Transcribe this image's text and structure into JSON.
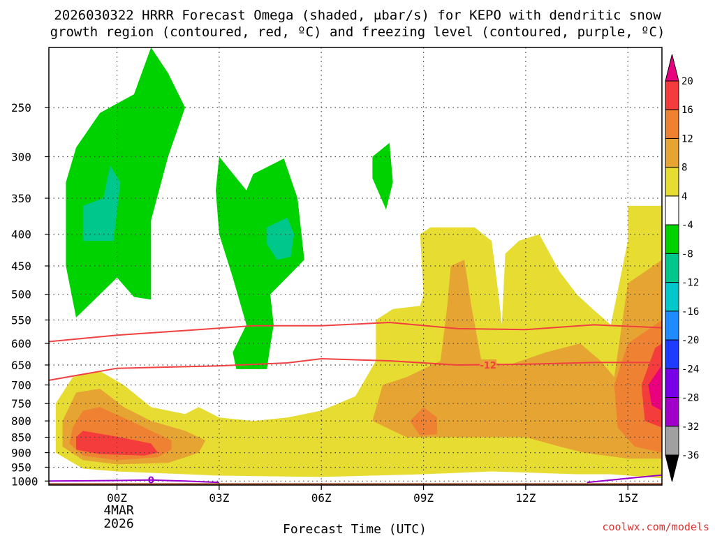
{
  "chart_data": {
    "type": "contour",
    "title_line1": "2026030322 HRRR Forecast Omega (shaded, μbar/s) for KEPO with dendritic snow",
    "title_line2": "growth region (contoured, red, ºC) and freezing level (contoured, purple, ºC)",
    "xlabel": "Forecast Time (UTC)",
    "credit": "coolwx.com/models",
    "x_ticks": [
      {
        "hour": 0,
        "label": "00Z"
      },
      {
        "hour": 3,
        "label": "03Z"
      },
      {
        "hour": 6,
        "label": "06Z"
      },
      {
        "hour": 9,
        "label": "09Z"
      },
      {
        "hour": 12,
        "label": "12Z"
      },
      {
        "hour": 15,
        "label": "15Z"
      }
    ],
    "date_line1": "4MAR",
    "date_line2": "2026",
    "x_range_hours": [
      -2,
      16
    ],
    "y_ticks": [
      250,
      300,
      350,
      400,
      450,
      500,
      550,
      600,
      650,
      700,
      750,
      800,
      850,
      900,
      950,
      1000
    ],
    "y_range_mb": [
      200,
      1015
    ],
    "colorbar": {
      "labels": [
        "20",
        "16",
        "12",
        "8",
        "4",
        "-4",
        "-8",
        "-12",
        "-16",
        "-20",
        "-24",
        "-28",
        "-32",
        "-36"
      ],
      "bins": [
        {
          "range": ">20",
          "color": "#e8007e"
        },
        {
          "range": "16 to 20",
          "color": "#f43c3c"
        },
        {
          "range": "12 to 16",
          "color": "#ee8232"
        },
        {
          "range": "8 to 12",
          "color": "#e6a532"
        },
        {
          "range": "4 to 8",
          "color": "#e6dc32"
        },
        {
          "range": "-4 to 4",
          "color": "#ffffff"
        },
        {
          "range": "-8 to -4",
          "color": "#00d200"
        },
        {
          "range": "-12 to -8",
          "color": "#00c88c"
        },
        {
          "range": "-16 to -12",
          "color": "#00c8c8"
        },
        {
          "range": "-20 to -16",
          "color": "#1e8cff"
        },
        {
          "range": "-24 to -20",
          "color": "#1e3cff"
        },
        {
          "range": "-28 to -24",
          "color": "#7800e6"
        },
        {
          "range": "-32 to -28",
          "color": "#a000c8"
        },
        {
          "range": "-36 to -32",
          "color": "#a0a0a0"
        },
        {
          "range": "<-36",
          "color": "#000000"
        }
      ]
    },
    "dendritic_zone_contours": {
      "color": "#f04040",
      "label": "-12",
      "upper_boundary": [
        {
          "hour": -2,
          "mb": 596
        },
        {
          "hour": 0,
          "mb": 582
        },
        {
          "hour": 2,
          "mb": 572
        },
        {
          "hour": 4,
          "mb": 562
        },
        {
          "hour": 6,
          "mb": 562
        },
        {
          "hour": 8,
          "mb": 555
        },
        {
          "hour": 10,
          "mb": 568
        },
        {
          "hour": 12,
          "mb": 570
        },
        {
          "hour": 14,
          "mb": 560
        },
        {
          "hour": 16,
          "mb": 566
        }
      ],
      "lower_boundary": [
        {
          "hour": -2,
          "mb": 688
        },
        {
          "hour": 0,
          "mb": 658
        },
        {
          "hour": 3,
          "mb": 652
        },
        {
          "hour": 5,
          "mb": 645
        },
        {
          "hour": 6,
          "mb": 635
        },
        {
          "hour": 8,
          "mb": 640
        },
        {
          "hour": 10,
          "mb": 650
        },
        {
          "hour": 12,
          "mb": 648
        },
        {
          "hour": 14,
          "mb": 644
        },
        {
          "hour": 16,
          "mb": 644
        }
      ]
    },
    "freezing_level": {
      "color": "#9a00cc",
      "label": "0",
      "points": [
        {
          "hour": -2,
          "mb": 1000
        },
        {
          "hour": 0,
          "mb": 998
        },
        {
          "hour": 1,
          "mb": 996
        },
        {
          "hour": 2,
          "mb": 1000
        },
        {
          "hour": 3,
          "mb": 1005
        }
      ],
      "points_late": [
        {
          "hour": 13.8,
          "mb": 1005
        },
        {
          "hour": 15,
          "mb": 990
        },
        {
          "hour": 16,
          "mb": 978
        }
      ]
    },
    "omega_regions": [
      {
        "value_bin": "-8 to -4",
        "color": "#00d200",
        "pts": [
          [
            -1.5,
            330
          ],
          [
            -1.2,
            290
          ],
          [
            -0.5,
            255
          ],
          [
            0.5,
            238
          ],
          [
            1,
            200
          ],
          [
            1.5,
            220
          ],
          [
            2,
            250
          ],
          [
            1.5,
            300
          ],
          [
            1,
            380
          ],
          [
            1,
            510
          ],
          [
            0.5,
            505
          ],
          [
            0,
            470
          ],
          [
            -0.5,
            500
          ],
          [
            -1.2,
            545
          ],
          [
            -1.5,
            450
          ]
        ]
      },
      {
        "value_bin": "-12 to -8",
        "color": "#00c88c",
        "pts": [
          [
            -1,
            360
          ],
          [
            -0.4,
            350
          ],
          [
            -0.2,
            310
          ],
          [
            0.1,
            330
          ],
          [
            -0.1,
            410
          ],
          [
            -1,
            410
          ]
        ]
      },
      {
        "value_bin": "-8 to -4",
        "color": "#00d200",
        "pts": [
          [
            2.9,
            340
          ],
          [
            3,
            300
          ],
          [
            3.8,
            340
          ],
          [
            4,
            320
          ],
          [
            4.9,
            302
          ],
          [
            5.3,
            350
          ],
          [
            5.5,
            440
          ],
          [
            4.5,
            500
          ],
          [
            4.6,
            560
          ],
          [
            4.5,
            605
          ],
          [
            4.4,
            660
          ],
          [
            3.5,
            660
          ],
          [
            3.4,
            620
          ],
          [
            3.8,
            560
          ],
          [
            3.4,
            470
          ],
          [
            3,
            400
          ]
        ]
      },
      {
        "value_bin": "-12 to -8",
        "color": "#00c88c",
        "pts": [
          [
            4.4,
            390
          ],
          [
            5,
            376
          ],
          [
            5.2,
            400
          ],
          [
            5.1,
            435
          ],
          [
            4.7,
            440
          ],
          [
            4.4,
            415
          ]
        ]
      },
      {
        "value_bin": "-8 to -4",
        "color": "#00d200",
        "pts": [
          [
            7.5,
            300
          ],
          [
            8,
            285
          ],
          [
            8.1,
            330
          ],
          [
            7.9,
            365
          ],
          [
            7.5,
            325
          ]
        ]
      },
      {
        "value_bin": "4 to 8",
        "color": "#e6dc32",
        "pts": [
          [
            -1.8,
            750
          ],
          [
            -1.3,
            680
          ],
          [
            -0.5,
            665
          ],
          [
            0.2,
            700
          ],
          [
            1,
            760
          ],
          [
            2,
            780
          ],
          [
            2.4,
            760
          ],
          [
            3,
            790
          ],
          [
            4,
            800
          ],
          [
            5,
            790
          ],
          [
            6,
            770
          ],
          [
            7,
            730
          ],
          [
            7.6,
            640
          ],
          [
            7.6,
            550
          ],
          [
            8.1,
            528
          ],
          [
            8.9,
            522
          ],
          [
            9,
            500
          ],
          [
            8.9,
            400
          ],
          [
            9.2,
            390
          ],
          [
            10.5,
            390
          ],
          [
            11,
            410
          ],
          [
            11.2,
            500
          ],
          [
            11.3,
            560
          ],
          [
            11.4,
            430
          ],
          [
            11.8,
            410
          ],
          [
            12.4,
            400
          ],
          [
            13,
            460
          ],
          [
            13.5,
            500
          ],
          [
            14,
            530
          ],
          [
            14.5,
            560
          ],
          [
            15,
            410
          ],
          [
            15,
            360
          ],
          [
            16,
            360
          ],
          [
            16,
            990
          ],
          [
            14.5,
            975
          ],
          [
            13.5,
            975
          ],
          [
            11,
            965
          ],
          [
            9,
            975
          ],
          [
            6,
            985
          ],
          [
            3,
            980
          ],
          [
            1,
            970
          ],
          [
            0,
            965
          ],
          [
            -1,
            955
          ],
          [
            -1.8,
            900
          ]
        ]
      },
      {
        "value_bin": "8 to 12",
        "color": "#e6a532",
        "pts": [
          [
            -1.6,
            800
          ],
          [
            -1.2,
            720
          ],
          [
            -0.5,
            710
          ],
          [
            0.2,
            760
          ],
          [
            1,
            800
          ],
          [
            2,
            830
          ],
          [
            2.6,
            860
          ],
          [
            2.4,
            900
          ],
          [
            1.5,
            935
          ],
          [
            0,
            940
          ],
          [
            -1,
            925
          ],
          [
            -1.6,
            880
          ]
        ]
      },
      {
        "value_bin": "8 to 12",
        "color": "#e6a532",
        "pts": [
          [
            7.5,
            800
          ],
          [
            7.8,
            700
          ],
          [
            8.5,
            680
          ],
          [
            9.5,
            640
          ],
          [
            9.7,
            520
          ],
          [
            9.8,
            450
          ],
          [
            10.2,
            440
          ],
          [
            10.4,
            520
          ],
          [
            10.7,
            640
          ],
          [
            11.5,
            650
          ],
          [
            12.6,
            620
          ],
          [
            13.6,
            600
          ],
          [
            14.2,
            640
          ],
          [
            14.6,
            680
          ],
          [
            15,
            480
          ],
          [
            16,
            440
          ],
          [
            16,
            920
          ],
          [
            15,
            920
          ],
          [
            13.7,
            900
          ],
          [
            13,
            880
          ],
          [
            12,
            850
          ],
          [
            10,
            850
          ],
          [
            8.5,
            850
          ]
        ]
      },
      {
        "value_bin": "12 to 16",
        "color": "#ee8232",
        "pts": [
          [
            -1.3,
            820
          ],
          [
            -1,
            770
          ],
          [
            -0.5,
            760
          ],
          [
            0.4,
            800
          ],
          [
            1,
            830
          ],
          [
            1.6,
            860
          ],
          [
            1.6,
            890
          ],
          [
            1.2,
            915
          ],
          [
            0,
            925
          ],
          [
            -1,
            910
          ],
          [
            -1.4,
            870
          ]
        ]
      },
      {
        "value_bin": "12 to 16",
        "color": "#ee8232",
        "pts": [
          [
            8.6,
            800
          ],
          [
            9,
            760
          ],
          [
            9.4,
            790
          ],
          [
            9.4,
            840
          ],
          [
            8.9,
            845
          ]
        ]
      },
      {
        "value_bin": "12 to 16",
        "color": "#ee8232",
        "pts": [
          [
            14.6,
            700
          ],
          [
            15,
            600
          ],
          [
            16,
            550
          ],
          [
            16,
            900
          ],
          [
            15.2,
            880
          ],
          [
            14.7,
            820
          ]
        ]
      },
      {
        "value_bin": "16 to 20",
        "color": "#f43c3c",
        "pts": [
          [
            -1.2,
            850
          ],
          [
            -1,
            830
          ],
          [
            0,
            848
          ],
          [
            1,
            870
          ],
          [
            1.2,
            900
          ],
          [
            0.8,
            910
          ],
          [
            -0.5,
            905
          ],
          [
            -1.2,
            890
          ]
        ]
      },
      {
        "value_bin": "16 to 20",
        "color": "#f43c3c",
        "pts": [
          [
            15.4,
            700
          ],
          [
            15.8,
            610
          ],
          [
            16,
            600
          ],
          [
            16,
            820
          ],
          [
            15.5,
            800
          ]
        ]
      },
      {
        "value_bin": ">20",
        "color": "#e8007e",
        "pts": [
          [
            15.6,
            700
          ],
          [
            16,
            650
          ],
          [
            16,
            770
          ],
          [
            15.7,
            755
          ]
        ]
      }
    ],
    "terrain_color": "#a0522d",
    "terrain_top_mb": 1008
  }
}
